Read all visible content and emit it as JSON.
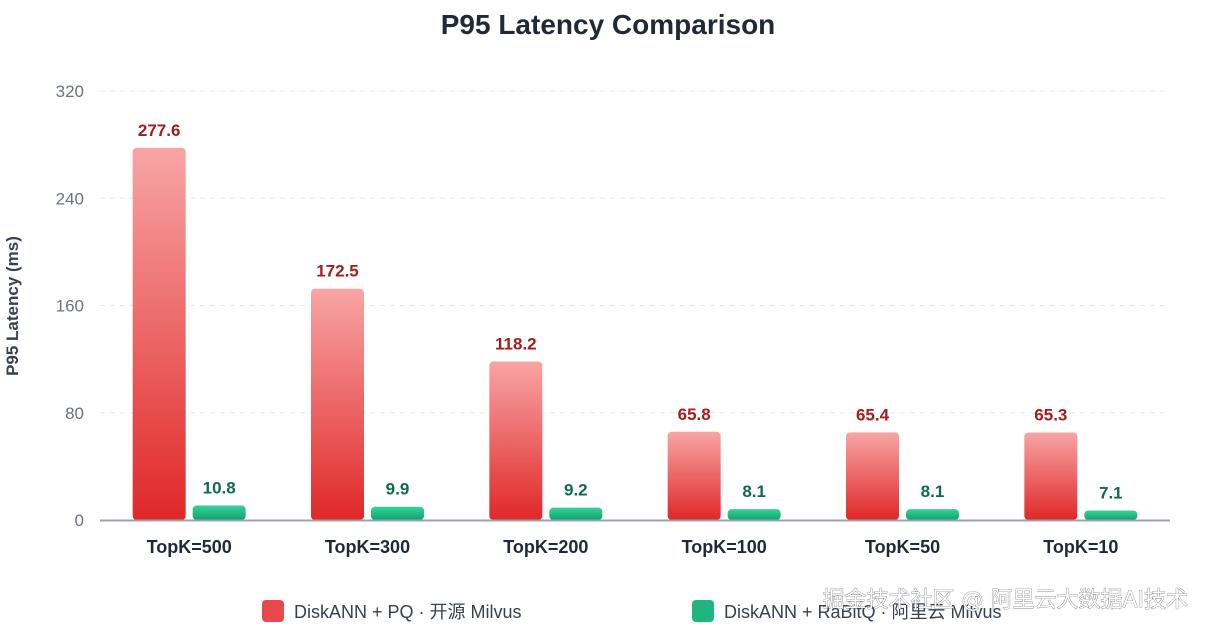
{
  "watermark": "掘金技术社区 @ 阿里云大数据AI技术",
  "chart_data": {
    "type": "bar",
    "title": "P95 Latency Comparison",
    "xlabel": "",
    "ylabel": "P95 Latency (ms)",
    "ylim": [
      0,
      320
    ],
    "yticks": [
      0,
      80,
      160,
      240,
      320
    ],
    "grid": true,
    "legend_position": "bottom",
    "categories": [
      "TopK=500",
      "TopK=300",
      "TopK=200",
      "TopK=100",
      "TopK=50",
      "TopK=10"
    ],
    "series": [
      {
        "name": "DiskANN + PQ · 开源 Milvus",
        "values": [
          277.6,
          172.5,
          118.2,
          65.8,
          65.4,
          65.3
        ],
        "labels": [
          "277.6",
          "172.5",
          "118.2",
          "65.8",
          "65.4",
          "65.3"
        ],
        "color_top": "#f8a5a5",
        "color_bottom": "#e02828",
        "label_color": "#a31d1d"
      },
      {
        "name": "DiskANN + RaBitQ · 阿里云 Milvus",
        "values": [
          10.8,
          9.9,
          9.2,
          8.1,
          8.1,
          7.1
        ],
        "labels": [
          "10.8",
          "9.9",
          "9.2",
          "8.1",
          "8.1",
          "7.1"
        ],
        "color_top": "#34d399",
        "color_bottom": "#10a36e",
        "label_color": "#0f6b47"
      }
    ]
  }
}
